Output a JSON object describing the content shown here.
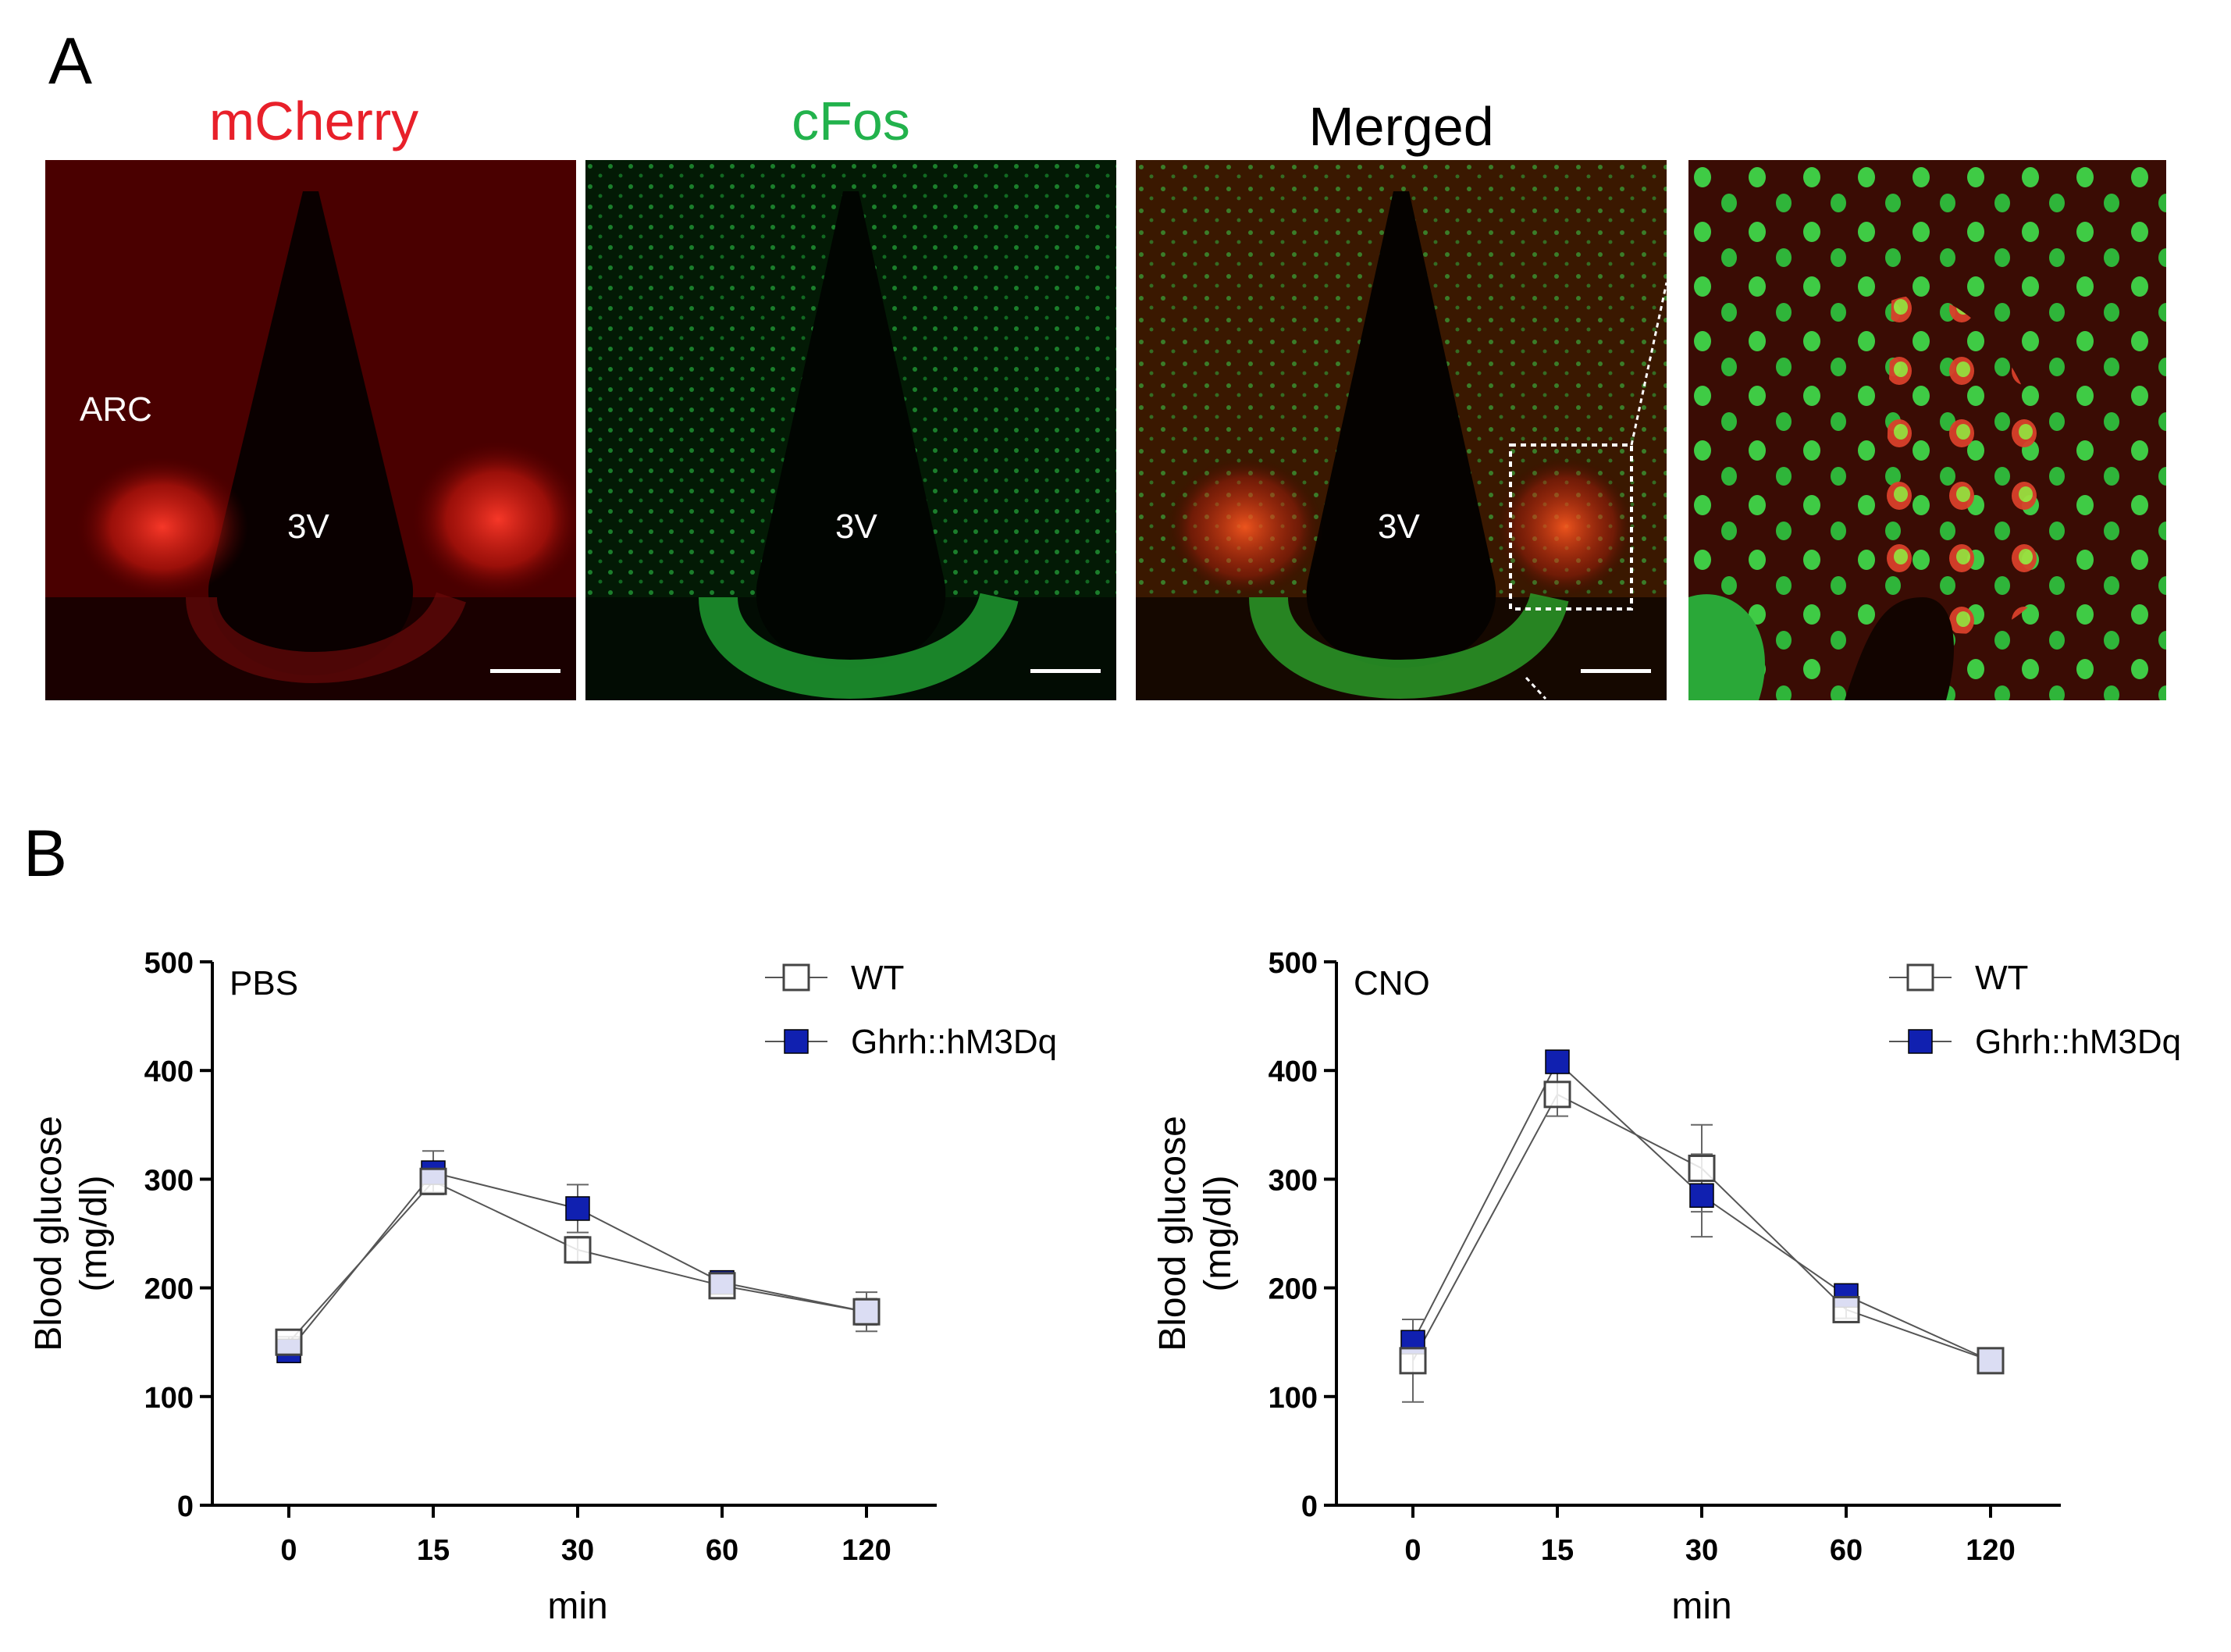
{
  "panel_a": {
    "letter": "A",
    "channels": [
      {
        "title": "mCherry",
        "color": "#e8202a"
      },
      {
        "title": "cFos",
        "color": "#22b24c"
      },
      {
        "title": "Merged",
        "color": "#000000"
      }
    ],
    "labels": {
      "arc": "ARC",
      "ventricle": "3V"
    }
  },
  "panel_b": {
    "letter": "B"
  },
  "chart_data": [
    {
      "type": "line",
      "title": "PBS",
      "xlabel": "min",
      "ylabel": "Blood glucose\n(mg/dl)",
      "ylabel_lines": [
        "Blood glucose",
        "(mg/dl)"
      ],
      "categories": [
        "0",
        "15",
        "30",
        "60",
        "120"
      ],
      "ylim": [
        0,
        500
      ],
      "yticks": [
        "0",
        "100",
        "200",
        "300",
        "400",
        "500"
      ],
      "legend_position": "top-right",
      "series": [
        {
          "name": "WT",
          "marker": "open-square",
          "values": [
            150,
            298,
            235,
            202,
            178
          ],
          "errors": [
            5,
            10,
            12,
            6,
            18
          ]
        },
        {
          "name": "Ghrh::hM3Dq",
          "marker": "filled-square",
          "color": "#1020b0",
          "values": [
            142,
            306,
            273,
            205,
            178
          ],
          "errors": [
            5,
            20,
            22,
            6,
            12
          ]
        }
      ]
    },
    {
      "type": "line",
      "title": "CNO",
      "xlabel": "min",
      "ylabel": "Blood glucose\n(mg/dl)",
      "ylabel_lines": [
        "Blood glucose",
        "(mg/dl)"
      ],
      "categories": [
        "0",
        "15",
        "30",
        "60",
        "120"
      ],
      "ylim": [
        0,
        500
      ],
      "yticks": [
        "0",
        "100",
        "200",
        "300",
        "400",
        "500"
      ],
      "legend_position": "top-right",
      "series": [
        {
          "name": "WT",
          "marker": "open-square",
          "values": [
            133,
            378,
            310,
            180,
            133
          ],
          "errors": [
            38,
            20,
            40,
            8,
            5
          ]
        },
        {
          "name": "Ghrh::hM3Dq",
          "marker": "filled-square",
          "color": "#1020b0",
          "values": [
            150,
            408,
            285,
            193,
            133
          ],
          "errors": [
            8,
            8,
            38,
            6,
            5
          ]
        }
      ]
    }
  ]
}
